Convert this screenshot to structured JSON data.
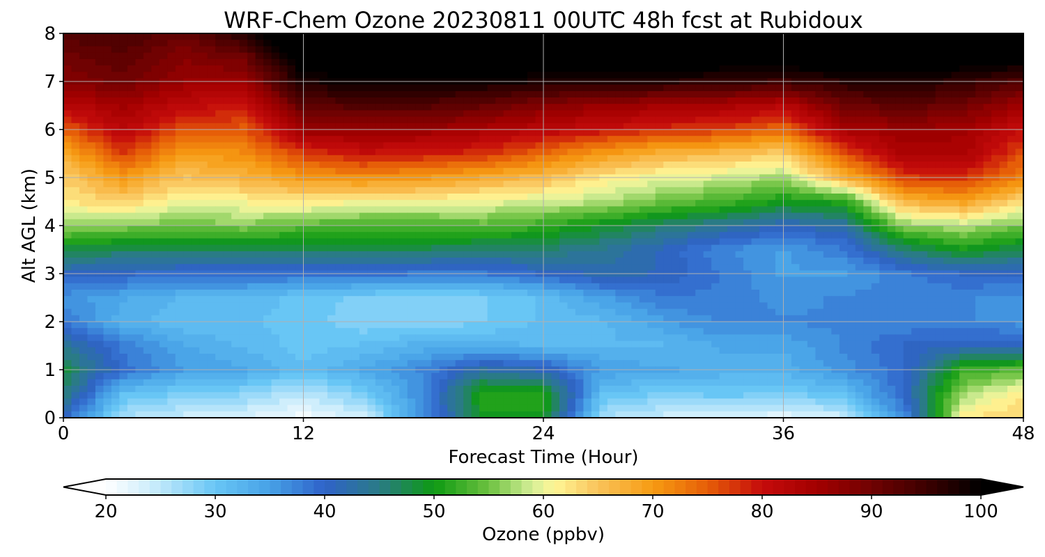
{
  "chart_data": {
    "type": "heatmap",
    "title": "WRF-Chem Ozone  20230811 00UTC 48h fcst at Rubidoux",
    "xlabel": "Forecast Time (Hour)",
    "ylabel": "Alt AGL (km)",
    "xlim": [
      0,
      48
    ],
    "ylim": [
      0,
      8
    ],
    "x_ticks": [
      "0",
      "12",
      "24",
      "36",
      "48"
    ],
    "y_ticks": [
      "0",
      "1",
      "2",
      "3",
      "4",
      "5",
      "6",
      "7",
      "8"
    ],
    "grid": true,
    "x": [
      0,
      3,
      6,
      9,
      12,
      15,
      18,
      21,
      24,
      27,
      30,
      33,
      36,
      39,
      42,
      45,
      48
    ],
    "y": [
      0,
      0.5,
      1,
      1.5,
      2,
      2.5,
      3,
      3.5,
      4,
      4.5,
      5,
      5.5,
      6,
      6.5,
      7,
      7.5,
      8
    ],
    "z_units": "ppbv",
    "z": [
      [
        40,
        26,
        24,
        23,
        21,
        24,
        36,
        50,
        50,
        26,
        24,
        23,
        22,
        24,
        36,
        62,
        64
      ],
      [
        46,
        31,
        29,
        28,
        25,
        29,
        37,
        51,
        51,
        31,
        29,
        30,
        29,
        31,
        40,
        57,
        62
      ],
      [
        48,
        39,
        35,
        34,
        31,
        34,
        37,
        43,
        41,
        35,
        34,
        33,
        33,
        36,
        39,
        52,
        54
      ],
      [
        44,
        38,
        34,
        32,
        30,
        31,
        33,
        33,
        32,
        32,
        32,
        34,
        34,
        37,
        40,
        41,
        41
      ],
      [
        38,
        33,
        31,
        31,
        30,
        28,
        28,
        29,
        31,
        32,
        35,
        37,
        37,
        37,
        37,
        37,
        36
      ],
      [
        36,
        34,
        32,
        32,
        30,
        29,
        28,
        29,
        31,
        35,
        38,
        38,
        36,
        37,
        37,
        37,
        36
      ],
      [
        41,
        40,
        39,
        39,
        39,
        39,
        38,
        38,
        40,
        42,
        41,
        38,
        35,
        35,
        38,
        40,
        40
      ],
      [
        48,
        47,
        47,
        47,
        47,
        47,
        47,
        46,
        46,
        44,
        41,
        37,
        35,
        38,
        46,
        50,
        47
      ],
      [
        57,
        56,
        55,
        56,
        54,
        53,
        53,
        54,
        52,
        49,
        46,
        44,
        41,
        43,
        56,
        58,
        55
      ],
      [
        62,
        64,
        60,
        61,
        62,
        61,
        61,
        60,
        59,
        58,
        55,
        53,
        50,
        51,
        67,
        69,
        63
      ],
      [
        64,
        70,
        65,
        67,
        70,
        71,
        70,
        68,
        66,
        62,
        60,
        59,
        57,
        67,
        77,
        78,
        72
      ],
      [
        68,
        77,
        70,
        71,
        77,
        80,
        79,
        78,
        74,
        70,
        67,
        66,
        64,
        76,
        84,
        84,
        76
      ],
      [
        75,
        82,
        76,
        75,
        86,
        86,
        86,
        84,
        82,
        80,
        78,
        77,
        74,
        84,
        86,
        85,
        80
      ],
      [
        82,
        85,
        81,
        80,
        92,
        93,
        93,
        91,
        88,
        86,
        85,
        84,
        82,
        90,
        92,
        90,
        85
      ],
      [
        88,
        90,
        86,
        86,
        98,
        99,
        99,
        99,
        98,
        97,
        97,
        96,
        95,
        97,
        98,
        96,
        93
      ],
      [
        90,
        92,
        88,
        90,
        103,
        104,
        104,
        104,
        104,
        104,
        104,
        103,
        103,
        104,
        104,
        103,
        102
      ],
      [
        93,
        94,
        91,
        97,
        106,
        106,
        106,
        106,
        106,
        106,
        106,
        106,
        106,
        106,
        106,
        106,
        106
      ]
    ],
    "colorbar": {
      "label": "Ozone  (ppbv)",
      "min": 20,
      "max": 100,
      "extend": "both",
      "ticks": [
        "20",
        "30",
        "40",
        "50",
        "60",
        "70",
        "80",
        "90",
        "100"
      ],
      "anchors": [
        [
          20,
          "#ffffff"
        ],
        [
          24,
          "#cfeefc"
        ],
        [
          30,
          "#68c6f5"
        ],
        [
          35,
          "#47a1e6"
        ],
        [
          40,
          "#2f62c9"
        ],
        [
          45,
          "#2a7b86"
        ],
        [
          50,
          "#0e9a12"
        ],
        [
          55,
          "#6cc140"
        ],
        [
          59,
          "#d6ef98"
        ],
        [
          61,
          "#fff697"
        ],
        [
          65,
          "#f9c35a"
        ],
        [
          70,
          "#f79b12"
        ],
        [
          75,
          "#e65e08"
        ],
        [
          80,
          "#c50b0b"
        ],
        [
          85,
          "#a30000"
        ],
        [
          90,
          "#700202"
        ],
        [
          95,
          "#3c0000"
        ],
        [
          100,
          "#000000"
        ]
      ]
    }
  }
}
